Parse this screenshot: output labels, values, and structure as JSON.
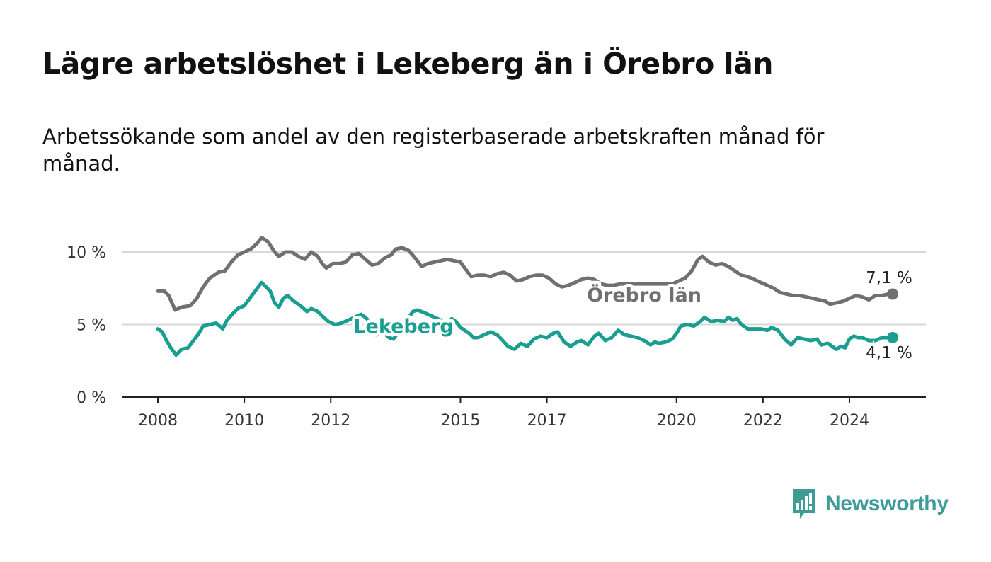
{
  "title": "Lägre arbetslöshet i Lekeberg än i Örebro län",
  "subtitle": "Arbetssökande som andel av den registerbaserade arbetskraften månad för månad.",
  "brand": {
    "name": "Newsworthy",
    "icon": "newsworthy-logo-icon",
    "color": "#3e9c97"
  },
  "chart_data": {
    "type": "line",
    "y_ticks": [
      {
        "value": 0,
        "label": "0 %"
      },
      {
        "value": 5,
        "label": "5 %"
      },
      {
        "value": 10,
        "label": "10 %"
      }
    ],
    "x_ticks": [
      {
        "value": 2008,
        "label": "2008"
      },
      {
        "value": 2010,
        "label": "2010"
      },
      {
        "value": 2012,
        "label": "2012"
      },
      {
        "value": 2015,
        "label": "2015"
      },
      {
        "value": 2017,
        "label": "2017"
      },
      {
        "value": 2020,
        "label": "2020"
      },
      {
        "value": 2022,
        "label": "2022"
      },
      {
        "value": 2024,
        "label": "2024"
      }
    ],
    "xlim": [
      2007.2,
      2026.1
    ],
    "ylim": [
      0,
      10.5
    ],
    "grid": true,
    "series": [
      {
        "name": "Örebro län",
        "color": "#707070",
        "end_label": "7,1 %",
        "points": [
          [
            2008.0,
            7.3
          ],
          [
            2008.15,
            7.3
          ],
          [
            2008.25,
            7.0
          ],
          [
            2008.4,
            6.0
          ],
          [
            2008.55,
            6.2
          ],
          [
            2008.75,
            6.3
          ],
          [
            2008.9,
            6.8
          ],
          [
            2009.05,
            7.6
          ],
          [
            2009.2,
            8.2
          ],
          [
            2009.4,
            8.6
          ],
          [
            2009.55,
            8.7
          ],
          [
            2009.7,
            9.3
          ],
          [
            2009.85,
            9.8
          ],
          [
            2010.0,
            10.0
          ],
          [
            2010.15,
            10.2
          ],
          [
            2010.3,
            10.6
          ],
          [
            2010.4,
            11.0
          ],
          [
            2010.55,
            10.7
          ],
          [
            2010.7,
            10.0
          ],
          [
            2010.8,
            9.7
          ],
          [
            2010.95,
            10.0
          ],
          [
            2011.1,
            10.0
          ],
          [
            2011.25,
            9.7
          ],
          [
            2011.4,
            9.5
          ],
          [
            2011.55,
            10.0
          ],
          [
            2011.7,
            9.7
          ],
          [
            2011.8,
            9.2
          ],
          [
            2011.9,
            8.9
          ],
          [
            2012.05,
            9.2
          ],
          [
            2012.2,
            9.2
          ],
          [
            2012.35,
            9.3
          ],
          [
            2012.5,
            9.8
          ],
          [
            2012.65,
            9.9
          ],
          [
            2012.8,
            9.5
          ],
          [
            2012.95,
            9.1
          ],
          [
            2013.1,
            9.2
          ],
          [
            2013.25,
            9.6
          ],
          [
            2013.4,
            9.8
          ],
          [
            2013.5,
            10.2
          ],
          [
            2013.65,
            10.3
          ],
          [
            2013.8,
            10.1
          ],
          [
            2013.95,
            9.6
          ],
          [
            2014.1,
            9.0
          ],
          [
            2014.25,
            9.2
          ],
          [
            2014.4,
            9.3
          ],
          [
            2014.55,
            9.4
          ],
          [
            2014.7,
            9.5
          ],
          [
            2014.85,
            9.4
          ],
          [
            2015.0,
            9.3
          ],
          [
            2015.1,
            8.9
          ],
          [
            2015.25,
            8.3
          ],
          [
            2015.4,
            8.4
          ],
          [
            2015.55,
            8.4
          ],
          [
            2015.7,
            8.3
          ],
          [
            2015.85,
            8.5
          ],
          [
            2016.0,
            8.6
          ],
          [
            2016.15,
            8.4
          ],
          [
            2016.3,
            8.0
          ],
          [
            2016.45,
            8.1
          ],
          [
            2016.6,
            8.3
          ],
          [
            2016.75,
            8.4
          ],
          [
            2016.9,
            8.4
          ],
          [
            2017.05,
            8.2
          ],
          [
            2017.2,
            7.8
          ],
          [
            2017.35,
            7.6
          ],
          [
            2017.5,
            7.7
          ],
          [
            2017.65,
            7.9
          ],
          [
            2017.8,
            8.1
          ],
          [
            2017.95,
            8.2
          ],
          [
            2018.1,
            8.1
          ],
          [
            2018.25,
            7.8
          ],
          [
            2018.4,
            7.7
          ],
          [
            2018.55,
            7.7
          ],
          [
            2018.7,
            7.8
          ],
          [
            2019.9,
            7.8
          ],
          [
            2020.05,
            8.0
          ],
          [
            2020.2,
            8.2
          ],
          [
            2020.35,
            8.7
          ],
          [
            2020.5,
            9.5
          ],
          [
            2020.6,
            9.7
          ],
          [
            2020.75,
            9.3
          ],
          [
            2020.9,
            9.1
          ],
          [
            2021.05,
            9.2
          ],
          [
            2021.2,
            9.0
          ],
          [
            2021.35,
            8.7
          ],
          [
            2021.5,
            8.4
          ],
          [
            2021.65,
            8.3
          ],
          [
            2021.8,
            8.1
          ],
          [
            2021.95,
            7.9
          ],
          [
            2022.1,
            7.7
          ],
          [
            2022.25,
            7.5
          ],
          [
            2022.4,
            7.2
          ],
          [
            2022.55,
            7.1
          ],
          [
            2022.7,
            7.0
          ],
          [
            2022.85,
            7.0
          ],
          [
            2023.0,
            6.9
          ],
          [
            2023.15,
            6.8
          ],
          [
            2023.3,
            6.7
          ],
          [
            2023.45,
            6.6
          ],
          [
            2023.55,
            6.4
          ],
          [
            2023.7,
            6.5
          ],
          [
            2023.85,
            6.6
          ],
          [
            2024.0,
            6.8
          ],
          [
            2024.15,
            7.0
          ],
          [
            2024.3,
            6.9
          ],
          [
            2024.45,
            6.7
          ],
          [
            2024.6,
            7.0
          ],
          [
            2024.75,
            7.0
          ],
          [
            2024.9,
            7.1
          ],
          [
            2025.0,
            7.1
          ]
        ]
      },
      {
        "name": "Lekeberg",
        "color": "#1a9e90",
        "end_label": "4,1 %",
        "points": [
          [
            2008.0,
            4.7
          ],
          [
            2008.1,
            4.5
          ],
          [
            2008.2,
            3.9
          ],
          [
            2008.3,
            3.4
          ],
          [
            2008.42,
            2.9
          ],
          [
            2008.55,
            3.3
          ],
          [
            2008.7,
            3.4
          ],
          [
            2008.85,
            4.0
          ],
          [
            2008.95,
            4.4
          ],
          [
            2009.05,
            4.9
          ],
          [
            2009.2,
            5.0
          ],
          [
            2009.35,
            5.1
          ],
          [
            2009.5,
            4.7
          ],
          [
            2009.6,
            5.3
          ],
          [
            2009.75,
            5.8
          ],
          [
            2009.85,
            6.1
          ],
          [
            2010.0,
            6.3
          ],
          [
            2010.15,
            6.9
          ],
          [
            2010.3,
            7.5
          ],
          [
            2010.4,
            7.9
          ],
          [
            2010.5,
            7.6
          ],
          [
            2010.6,
            7.3
          ],
          [
            2010.7,
            6.5
          ],
          [
            2010.8,
            6.2
          ],
          [
            2010.9,
            6.8
          ],
          [
            2011.0,
            7.0
          ],
          [
            2011.15,
            6.6
          ],
          [
            2011.3,
            6.3
          ],
          [
            2011.45,
            5.9
          ],
          [
            2011.55,
            6.1
          ],
          [
            2011.7,
            5.9
          ],
          [
            2011.8,
            5.6
          ],
          [
            2011.95,
            5.2
          ],
          [
            2012.1,
            5.0
          ],
          [
            2012.25,
            5.1
          ],
          [
            2012.4,
            5.3
          ],
          [
            2012.55,
            5.5
          ],
          [
            2012.7,
            5.7
          ],
          [
            2012.8,
            5.5
          ],
          [
            2012.9,
            5.2
          ],
          [
            2013.05,
            4.3
          ],
          [
            2013.2,
            4.5
          ],
          [
            2013.35,
            4.1
          ],
          [
            2013.45,
            4.0
          ],
          [
            2013.9,
            5.9
          ],
          [
            2014.0,
            6.0
          ],
          [
            2014.1,
            5.9
          ],
          [
            2014.25,
            5.7
          ],
          [
            2014.4,
            5.5
          ],
          [
            2014.55,
            5.3
          ],
          [
            2014.7,
            5.1
          ],
          [
            2014.8,
            5.4
          ],
          [
            2014.9,
            5.2
          ],
          [
            2015.0,
            4.8
          ],
          [
            2015.1,
            4.6
          ],
          [
            2015.2,
            4.4
          ],
          [
            2015.3,
            4.1
          ],
          [
            2015.4,
            4.1
          ],
          [
            2015.55,
            4.3
          ],
          [
            2015.7,
            4.5
          ],
          [
            2015.85,
            4.3
          ],
          [
            2015.95,
            4.0
          ],
          [
            2016.1,
            3.5
          ],
          [
            2016.25,
            3.3
          ],
          [
            2016.4,
            3.7
          ],
          [
            2016.55,
            3.5
          ],
          [
            2016.7,
            4.0
          ],
          [
            2016.85,
            4.2
          ],
          [
            2017.0,
            4.1
          ],
          [
            2017.15,
            4.4
          ],
          [
            2017.25,
            4.5
          ],
          [
            2017.4,
            3.8
          ],
          [
            2017.55,
            3.5
          ],
          [
            2017.7,
            3.8
          ],
          [
            2017.8,
            3.9
          ],
          [
            2017.95,
            3.6
          ],
          [
            2018.1,
            4.2
          ],
          [
            2018.2,
            4.4
          ],
          [
            2018.35,
            3.9
          ],
          [
            2018.5,
            4.1
          ],
          [
            2018.65,
            4.6
          ],
          [
            2018.8,
            4.3
          ],
          [
            2018.95,
            4.2
          ],
          [
            2019.1,
            4.1
          ],
          [
            2019.25,
            3.9
          ],
          [
            2019.4,
            3.6
          ],
          [
            2019.5,
            3.8
          ],
          [
            2019.6,
            3.7
          ],
          [
            2019.75,
            3.8
          ],
          [
            2019.9,
            4.0
          ],
          [
            2020.0,
            4.4
          ],
          [
            2020.1,
            4.9
          ],
          [
            2020.25,
            5.0
          ],
          [
            2020.4,
            4.9
          ],
          [
            2020.55,
            5.2
          ],
          [
            2020.65,
            5.5
          ],
          [
            2020.8,
            5.2
          ],
          [
            2020.95,
            5.3
          ],
          [
            2021.1,
            5.2
          ],
          [
            2021.2,
            5.5
          ],
          [
            2021.3,
            5.3
          ],
          [
            2021.4,
            5.4
          ],
          [
            2021.5,
            5.0
          ],
          [
            2021.65,
            4.7
          ],
          [
            2021.8,
            4.7
          ],
          [
            2021.95,
            4.7
          ],
          [
            2022.1,
            4.6
          ],
          [
            2022.2,
            4.8
          ],
          [
            2022.35,
            4.6
          ],
          [
            2022.5,
            4.0
          ],
          [
            2022.65,
            3.6
          ],
          [
            2022.8,
            4.1
          ],
          [
            2022.95,
            4.0
          ],
          [
            2023.1,
            3.9
          ],
          [
            2023.25,
            4.0
          ],
          [
            2023.35,
            3.6
          ],
          [
            2023.5,
            3.7
          ],
          [
            2023.6,
            3.5
          ],
          [
            2023.7,
            3.3
          ],
          [
            2023.8,
            3.5
          ],
          [
            2023.9,
            3.4
          ],
          [
            2024.0,
            4.0
          ],
          [
            2024.1,
            4.2
          ],
          [
            2024.2,
            4.1
          ],
          [
            2024.3,
            4.1
          ],
          [
            2024.45,
            3.9
          ],
          [
            2024.6,
            3.9
          ],
          [
            2024.75,
            4.1
          ],
          [
            2024.9,
            4.1
          ],
          [
            2025.0,
            4.1
          ]
        ]
      }
    ]
  }
}
